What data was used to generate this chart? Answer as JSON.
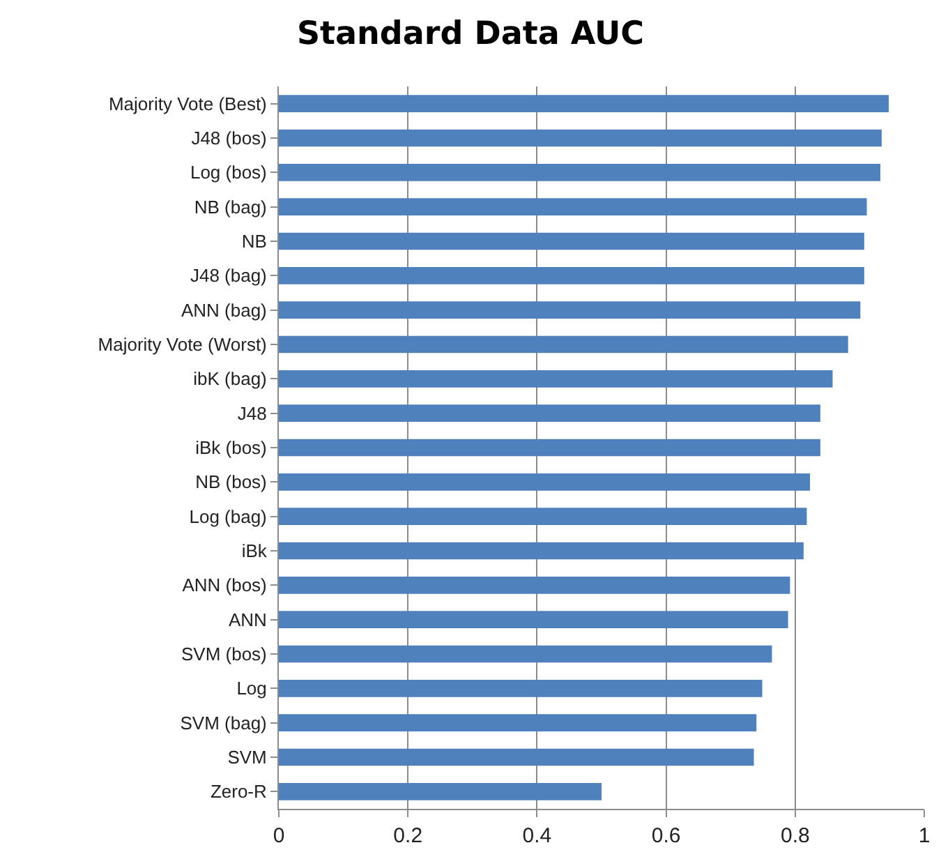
{
  "chart_data": {
    "type": "bar",
    "orientation": "horizontal",
    "title": "Standard Data AUC",
    "categories": [
      "Majority Vote (Best)",
      "J48 (bos)",
      "Log (bos)",
      "NB (bag)",
      "NB",
      "J48 (bag)",
      "ANN (bag)",
      "Majority Vote (Worst)",
      "ibK (bag)",
      "J48",
      "iBk (bos)",
      "NB (bos)",
      "Log (bag)",
      "iBk",
      "ANN (bos)",
      "ANN",
      "SVM (bos)",
      "Log",
      "SVM (bag)",
      "SVM",
      "Zero-R"
    ],
    "values": [
      0.945,
      0.934,
      0.932,
      0.911,
      0.907,
      0.907,
      0.901,
      0.882,
      0.858,
      0.839,
      0.839,
      0.823,
      0.818,
      0.813,
      0.792,
      0.789,
      0.764,
      0.749,
      0.74,
      0.736,
      0.5
    ],
    "color": "#4f81bd",
    "xlim": [
      0,
      1
    ],
    "xticks": [
      0,
      0.2,
      0.4,
      0.6,
      0.8,
      1
    ],
    "grid": "x"
  }
}
